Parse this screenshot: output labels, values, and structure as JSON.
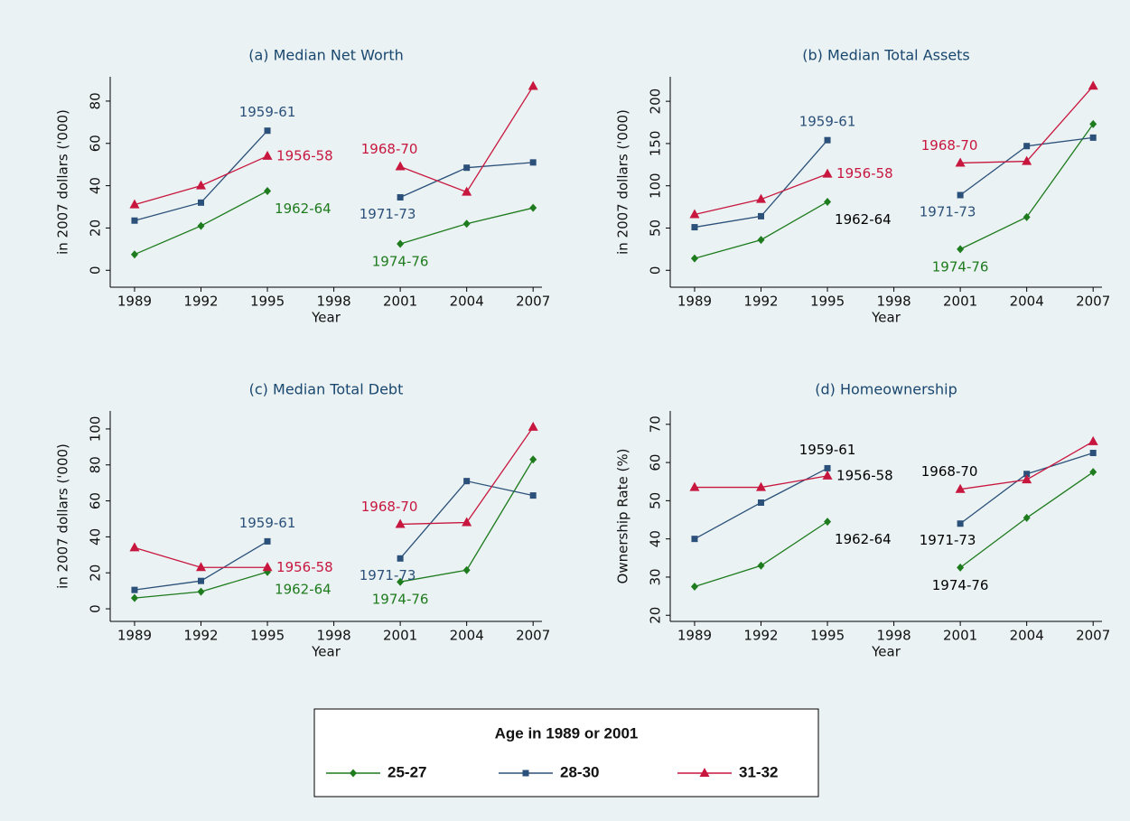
{
  "legend": {
    "title": "Age in 1989 or 2001"
  },
  "chart_data": [
    {
      "type": "line",
      "title": "(a) Median Net Worth",
      "x_label": "Year",
      "y_label": "in 2007 dollars ('000)",
      "x": [
        1989,
        1992,
        1995,
        1998,
        2001,
        2004,
        2007
      ],
      "xlim": [
        1987.9,
        2007.4
      ],
      "xticks": [
        1989,
        1992,
        1995,
        1998,
        2001,
        2004,
        2007
      ],
      "ylim": [
        -8,
        91.5
      ],
      "yticks": [
        0,
        20,
        40,
        60,
        80
      ],
      "series": [
        {
          "name": "25-27",
          "color": "#1e7b1e",
          "marker": "diamond",
          "values": [
            7.5,
            21,
            37.5,
            null,
            12.5,
            22,
            29.5
          ]
        },
        {
          "name": "28-30",
          "color": "#2b5079",
          "marker": "square",
          "values": [
            23.5,
            32,
            66,
            null,
            34.5,
            48.5,
            51
          ]
        },
        {
          "name": "31-32",
          "color": "#c8173f",
          "marker": "triangle",
          "values": [
            31,
            40,
            54,
            null,
            49,
            37,
            87
          ]
        }
      ],
      "annotations": [
        {
          "text": "1959-61",
          "series": 1,
          "index": 2,
          "color": "#2b5079"
        },
        {
          "text": "1956-58",
          "series": 2,
          "index": 2,
          "color": "#c8173f"
        },
        {
          "text": "1962-64",
          "series": 0,
          "index": 2,
          "color": "#1e7b1e"
        },
        {
          "text": "1968-70",
          "series": 2,
          "index": 4,
          "color": "#c8173f"
        },
        {
          "text": "1971-73",
          "series": 1,
          "index": 4,
          "color": "#2b5079"
        },
        {
          "text": "1974-76",
          "series": 0,
          "index": 4,
          "color": "#1e7b1e"
        }
      ]
    },
    {
      "type": "line",
      "title": "(b) Median Total Assets",
      "x_label": "Year",
      "y_label": "in 2007 dollars ('000)",
      "x": [
        1989,
        1992,
        1995,
        1998,
        2001,
        2004,
        2007
      ],
      "xlim": [
        1987.9,
        2007.4
      ],
      "xticks": [
        1989,
        1992,
        1995,
        1998,
        2001,
        2004,
        2007
      ],
      "ylim": [
        -20,
        229
      ],
      "yticks": [
        0,
        50,
        100,
        150,
        200
      ],
      "series": [
        {
          "color": "#1e7b1e",
          "marker": "diamond",
          "values": [
            14,
            36,
            81,
            null,
            25,
            63,
            173
          ]
        },
        {
          "color": "#2b5079",
          "marker": "square",
          "values": [
            51,
            64,
            154,
            null,
            89,
            147,
            157
          ]
        },
        {
          "color": "#c8173f",
          "marker": "triangle",
          "values": [
            66,
            84,
            114,
            null,
            127,
            129,
            218
          ]
        }
      ],
      "annotations": [
        {
          "text": "1959-61",
          "series": 1,
          "index": 2,
          "color": "#2b5079"
        },
        {
          "text": "1956-58",
          "series": 2,
          "index": 2,
          "color": "#c8173f"
        },
        {
          "text": "1962-64",
          "series": 0,
          "index": 2,
          "color": "#000000"
        },
        {
          "text": "1968-70",
          "series": 2,
          "index": 4,
          "color": "#c8173f"
        },
        {
          "text": "1971-73",
          "series": 1,
          "index": 4,
          "color": "#2b5079"
        },
        {
          "text": "1974-76",
          "series": 0,
          "index": 4,
          "color": "#1e7b1e"
        }
      ]
    },
    {
      "type": "line",
      "title": "(c) Median Total Debt",
      "x_label": "Year",
      "y_label": "in 2007 dollars ('000)",
      "x": [
        1989,
        1992,
        1995,
        1998,
        2001,
        2004,
        2007
      ],
      "xlim": [
        1987.9,
        2007.4
      ],
      "xticks": [
        1989,
        1992,
        1995,
        1998,
        2001,
        2004,
        2007
      ],
      "ylim": [
        -7,
        110
      ],
      "yticks": [
        0,
        20,
        40,
        60,
        80,
        100
      ],
      "series": [
        {
          "color": "#1e7b1e",
          "marker": "diamond",
          "values": [
            6,
            9.5,
            20.5,
            null,
            15,
            21.5,
            83
          ]
        },
        {
          "color": "#2b5079",
          "marker": "square",
          "values": [
            10.5,
            15.5,
            37.5,
            null,
            28,
            71,
            63
          ]
        },
        {
          "color": "#c8173f",
          "marker": "triangle",
          "values": [
            34,
            23,
            23,
            null,
            47,
            48,
            101
          ]
        }
      ],
      "annotations": [
        {
          "text": "1959-61",
          "series": 1,
          "index": 2,
          "color": "#2b5079"
        },
        {
          "text": "1956-58",
          "series": 2,
          "index": 2,
          "color": "#c8173f"
        },
        {
          "text": "1962-64",
          "series": 0,
          "index": 2,
          "color": "#1e7b1e"
        },
        {
          "text": "1968-70",
          "series": 2,
          "index": 4,
          "color": "#c8173f"
        },
        {
          "text": "1971-73",
          "series": 1,
          "index": 4,
          "color": "#2b5079"
        },
        {
          "text": "1974-76",
          "series": 0,
          "index": 4,
          "color": "#1e7b1e"
        }
      ]
    },
    {
      "type": "line",
      "title": "(d) Homeownership",
      "x_label": "Year",
      "y_label": "Ownership Rate (%)",
      "x": [
        1989,
        1992,
        1995,
        1998,
        2001,
        2004,
        2007
      ],
      "xlim": [
        1987.9,
        2007.4
      ],
      "xticks": [
        1989,
        1992,
        1995,
        1998,
        2001,
        2004,
        2007
      ],
      "ylim": [
        18.4,
        73.5
      ],
      "yticks": [
        20,
        30,
        40,
        50,
        60,
        70
      ],
      "series": [
        {
          "color": "#1e7b1e",
          "marker": "diamond",
          "values": [
            27.5,
            33,
            44.5,
            null,
            32.5,
            45.5,
            57.5
          ]
        },
        {
          "color": "#2b5079",
          "marker": "square",
          "values": [
            40,
            49.5,
            58.5,
            null,
            44,
            57,
            62.5
          ]
        },
        {
          "color": "#c8173f",
          "marker": "triangle",
          "values": [
            53.5,
            53.5,
            56.5,
            null,
            53,
            55.5,
            65.5
          ]
        }
      ],
      "annotations": [
        {
          "text": "1959-61",
          "series": 1,
          "index": 2,
          "color": "#000000"
        },
        {
          "text": "1956-58",
          "series": 2,
          "index": 2,
          "color": "#000000"
        },
        {
          "text": "1962-64",
          "series": 0,
          "index": 2,
          "color": "#000000"
        },
        {
          "text": "1968-70",
          "series": 2,
          "index": 4,
          "color": "#000000"
        },
        {
          "text": "1971-73",
          "series": 1,
          "index": 4,
          "color": "#000000"
        },
        {
          "text": "1974-76",
          "series": 0,
          "index": 4,
          "color": "#000000"
        }
      ]
    }
  ]
}
